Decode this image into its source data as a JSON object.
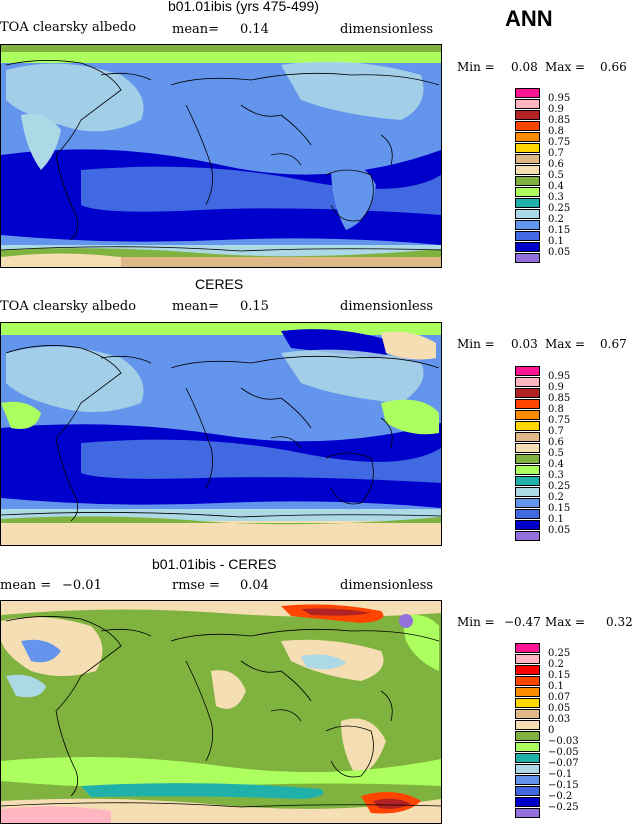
{
  "header": {
    "season": "ANN"
  },
  "panels": [
    {
      "title": "b01.01ibis (yrs 475-499)",
      "left_label": "TOA clearsky albedo",
      "mid_label": "mean=",
      "mid_value": "0.14",
      "units": "dimensionless",
      "min_label": "Min =",
      "min_value": "0.08",
      "max_label": "Max =",
      "max_value": "0.66",
      "legend": [
        "0.95",
        "0.9",
        "0.85",
        "0.8",
        "0.75",
        "0.7",
        "0.6",
        "0.5",
        "0.4",
        "0.3",
        "0.25",
        "0.2",
        "0.15",
        "0.1",
        "0.05"
      ]
    },
    {
      "title": "CERES",
      "left_label": "TOA clearsky albedo",
      "mid_label": "mean=",
      "mid_value": "0.15",
      "units": "dimensionless",
      "min_label": "Min =",
      "min_value": "0.03",
      "max_label": "Max =",
      "max_value": "0.67",
      "legend": [
        "0.95",
        "0.9",
        "0.85",
        "0.8",
        "0.75",
        "0.7",
        "0.6",
        "0.5",
        "0.4",
        "0.3",
        "0.25",
        "0.2",
        "0.15",
        "0.1",
        "0.05"
      ]
    },
    {
      "title": "b01.01ibis - CERES",
      "left_label": "mean =",
      "left_value": "−0.01",
      "mid_label": "rmse =",
      "mid_value": "0.04",
      "units": "dimensionless",
      "min_label": "Min =",
      "min_value": "−0.47",
      "max_label": "Max =",
      "max_value": "0.32",
      "legend": [
        "0.25",
        "0.2",
        "0.15",
        "0.1",
        "0.07",
        "0.05",
        "0.03",
        "0",
        "−0.03",
        "−0.05",
        "−0.07",
        "−0.1",
        "−0.15",
        "−0.2",
        "−0.25"
      ]
    }
  ],
  "colors": {
    "abs_scale": [
      "#ff1493",
      "#ffb6c1",
      "#b22222",
      "#ff4500",
      "#ff8c00",
      "#ffd700",
      "#deb887",
      "#f5deb3",
      "#7fb23f",
      "#adff5f",
      "#20b2aa",
      "#add8e6",
      "#6495ed",
      "#4169e1",
      "#0000cd",
      "#9370db"
    ],
    "diff_scale": [
      "#ff1493",
      "#ffb6c1",
      "#ff0000",
      "#ff4500",
      "#ff8c00",
      "#ffd700",
      "#deb887",
      "#f5deb3",
      "#7fb23f",
      "#adff5f",
      "#20b2aa",
      "#add8e6",
      "#6495ed",
      "#4169e1",
      "#0000cd",
      "#9370db"
    ]
  },
  "chart_data": [
    {
      "type": "heatmap",
      "title": "b01.01ibis (yrs 475-499)",
      "variable": "TOA clearsky albedo",
      "units": "dimensionless",
      "mean": 0.14,
      "min": 0.08,
      "max": 0.66,
      "contour_levels": [
        0.05,
        0.1,
        0.15,
        0.2,
        0.25,
        0.3,
        0.4,
        0.5,
        0.6,
        0.7,
        0.75,
        0.8,
        0.85,
        0.9,
        0.95
      ]
    },
    {
      "type": "heatmap",
      "title": "CERES",
      "variable": "TOA clearsky albedo",
      "units": "dimensionless",
      "mean": 0.15,
      "min": 0.03,
      "max": 0.67,
      "contour_levels": [
        0.05,
        0.1,
        0.15,
        0.2,
        0.25,
        0.3,
        0.4,
        0.5,
        0.6,
        0.7,
        0.75,
        0.8,
        0.85,
        0.9,
        0.95
      ]
    },
    {
      "type": "heatmap",
      "title": "b01.01ibis - CERES",
      "units": "dimensionless",
      "mean": -0.01,
      "rmse": 0.04,
      "min": -0.47,
      "max": 0.32,
      "contour_levels": [
        -0.25,
        -0.2,
        -0.15,
        -0.1,
        -0.07,
        -0.05,
        -0.03,
        0,
        0.03,
        0.05,
        0.07,
        0.1,
        0.15,
        0.2,
        0.25
      ]
    }
  ]
}
